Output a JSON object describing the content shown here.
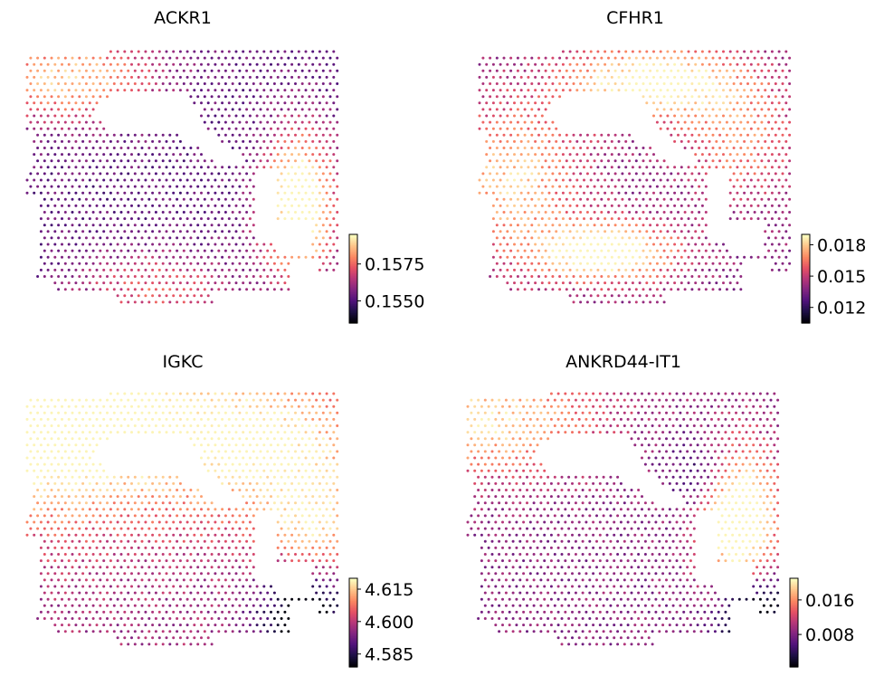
{
  "chart_data": [
    {
      "type": "scatter",
      "title": "ACKR1",
      "colormap": "magma",
      "colorbar": {
        "vmin": 0.1535,
        "vmax": 0.1595,
        "ticks": [
          0.155,
          0.1575
        ],
        "tick_labels": [
          "0.1550",
          "0.1575"
        ]
      },
      "hotspots": [
        {
          "cx": 0.86,
          "cy": 0.6,
          "sx": 0.08,
          "sy": 0.2,
          "w": 0.9
        },
        {
          "cx": 0.12,
          "cy": 0.1,
          "sx": 0.2,
          "sy": 0.12,
          "w": 0.6
        },
        {
          "cx": 0.4,
          "cy": 0.92,
          "sx": 0.18,
          "sy": 0.1,
          "w": 0.35
        }
      ],
      "base": 0.3
    },
    {
      "type": "scatter",
      "title": "CFHR1",
      "colormap": "magma",
      "colorbar": {
        "vmin": 0.0105,
        "vmax": 0.019,
        "ticks": [
          0.012,
          0.015,
          0.018
        ],
        "tick_labels": [
          "0.012",
          "0.015",
          "0.018"
        ]
      },
      "hotspots": [
        {
          "cx": 0.55,
          "cy": 0.12,
          "sx": 0.2,
          "sy": 0.1,
          "w": 0.7
        },
        {
          "cx": 0.4,
          "cy": 0.78,
          "sx": 0.15,
          "sy": 0.08,
          "w": 0.75
        },
        {
          "cx": 0.1,
          "cy": 0.5,
          "sx": 0.15,
          "sy": 0.2,
          "w": 0.5
        },
        {
          "cx": 0.82,
          "cy": 0.35,
          "sx": 0.12,
          "sy": 0.15,
          "w": 0.35
        }
      ],
      "base": 0.4
    },
    {
      "type": "scatter",
      "title": "IGKC",
      "colormap": "magma",
      "colorbar": {
        "vmin": 4.579,
        "vmax": 4.62,
        "ticks": [
          4.585,
          4.6,
          4.615
        ],
        "tick_labels": [
          "4.585",
          "4.600",
          "4.615"
        ]
      },
      "hotspots": [
        {
          "cx": 0.05,
          "cy": 0.05,
          "sx": 0.3,
          "sy": 0.28,
          "w": 0.9
        },
        {
          "cx": 0.75,
          "cy": 0.2,
          "sx": 0.25,
          "sy": 0.2,
          "w": 0.55
        },
        {
          "cx": 0.9,
          "cy": 0.55,
          "sx": 0.1,
          "sy": 0.15,
          "w": 0.45
        }
      ],
      "coldspots": [
        {
          "cx": 0.88,
          "cy": 0.85,
          "sx": 0.1,
          "sy": 0.15,
          "w": 0.6
        }
      ],
      "base": 0.45
    },
    {
      "type": "scatter",
      "title": "ANKRD44-IT1",
      "colormap": "magma",
      "colorbar": {
        "vmin": 0.0005,
        "vmax": 0.021,
        "ticks": [
          0.008,
          0.016
        ],
        "tick_labels": [
          "0.008",
          "0.016"
        ]
      },
      "hotspots": [
        {
          "cx": 0.86,
          "cy": 0.5,
          "sx": 0.08,
          "sy": 0.2,
          "w": 0.9
        },
        {
          "cx": 0.05,
          "cy": 0.1,
          "sx": 0.25,
          "sy": 0.15,
          "w": 0.55
        }
      ],
      "coldspots": [
        {
          "cx": 0.9,
          "cy": 0.85,
          "sx": 0.08,
          "sy": 0.12,
          "w": 0.65
        },
        {
          "cx": 0.75,
          "cy": 0.3,
          "sx": 0.08,
          "sy": 0.1,
          "w": 0.25
        }
      ],
      "base": 0.4
    }
  ],
  "colors": {
    "magma_stops": [
      "#000004",
      "#1c1044",
      "#4f127b",
      "#812581",
      "#b5367a",
      "#e55064",
      "#fb8761",
      "#fec287",
      "#fcfdbf"
    ]
  }
}
